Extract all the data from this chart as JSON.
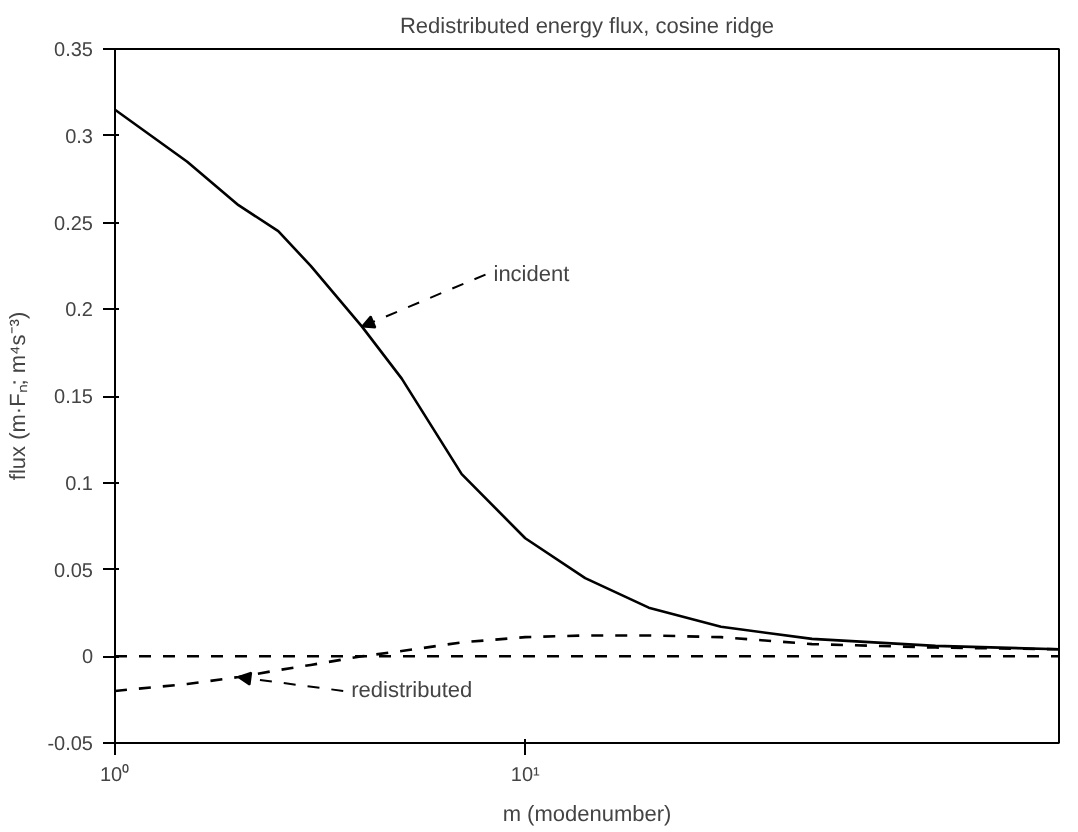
{
  "chart_data": {
    "type": "line",
    "title": "Redistributed energy flux, cosine ridge",
    "xlabel": "m (modenumber)",
    "ylabel": "flux (m·Fₙ; m⁴s⁻³)",
    "log": "x",
    "grid": false,
    "marker": "none",
    "xlim": [
      1,
      200
    ],
    "xticks": [
      {
        "value": 1,
        "label": "10⁰"
      },
      {
        "value": 10,
        "label": "10¹"
      }
    ],
    "ylim": [
      -0.05,
      0.35
    ],
    "yticks": [
      -0.05,
      0,
      0.05,
      0.1,
      0.15,
      0.2,
      0.25,
      0.3,
      0.35
    ],
    "x": [
      1,
      1.5,
      2,
      2.5,
      3,
      4,
      5,
      7,
      10,
      14,
      20,
      30,
      50,
      100,
      200
    ],
    "series": [
      {
        "color": "#000000",
        "line_style": "solid",
        "values": [
          0.315,
          0.285,
          0.26,
          0.245,
          0.225,
          0.19,
          0.16,
          0.105,
          0.068,
          0.045,
          0.028,
          0.017,
          0.01,
          0.006,
          0.004
        ]
      },
      {
        "color": "#000000",
        "line_style": "dashed",
        "values": [
          -0.02,
          -0.016,
          -0.012,
          -0.008,
          -0.005,
          0.0,
          0.003,
          0.008,
          0.011,
          0.012,
          0.012,
          0.011,
          0.007,
          0.005,
          0.004
        ]
      }
    ],
    "ref_lines": [
      {
        "axis": "y",
        "value": 0,
        "line_style": "dashed",
        "color": "#000000"
      }
    ],
    "annotations": [
      {
        "text": "incident",
        "x": 4,
        "y": 0.19
      },
      {
        "text": "redistributed",
        "x": 2,
        "y": -0.012
      }
    ]
  }
}
